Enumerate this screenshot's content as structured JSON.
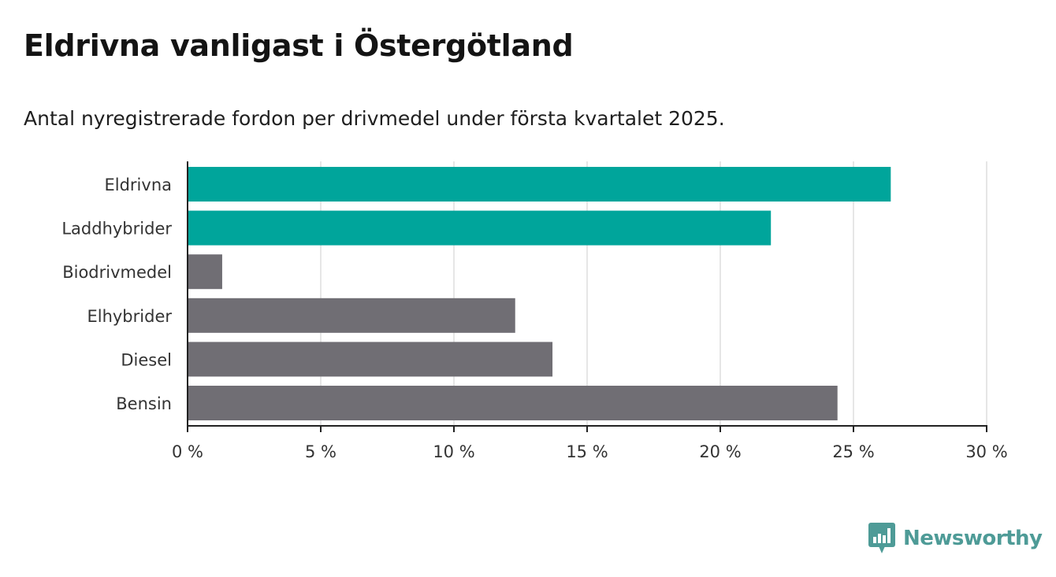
{
  "header": {
    "title": "Eldrivna vanligast i Östergötland",
    "subtitle": "Antal nyregistrerade fordon per drivmedel under första kvartalet 2025."
  },
  "brand": {
    "name": "Newsworthy",
    "logo_icon": "newsworthy-logo-icon",
    "color": "#4e9b97"
  },
  "chart_data": {
    "type": "bar",
    "orientation": "horizontal",
    "categories": [
      "Eldrivna",
      "Laddhybrider",
      "Biodrivmedel",
      "Elhybrider",
      "Diesel",
      "Bensin"
    ],
    "values": [
      26.4,
      21.9,
      1.3,
      12.3,
      13.7,
      24.4
    ],
    "colors": [
      "#00a59b",
      "#00a59b",
      "#706e74",
      "#706e74",
      "#706e74",
      "#706e74"
    ],
    "xlim": [
      0,
      30
    ],
    "x_ticks": [
      0,
      5,
      10,
      15,
      20,
      25,
      30
    ],
    "x_tick_labels": [
      "0 %",
      "5 %",
      "10 %",
      "15 %",
      "20 %",
      "25 %",
      "30 %"
    ],
    "grid": true,
    "legend": "none"
  }
}
